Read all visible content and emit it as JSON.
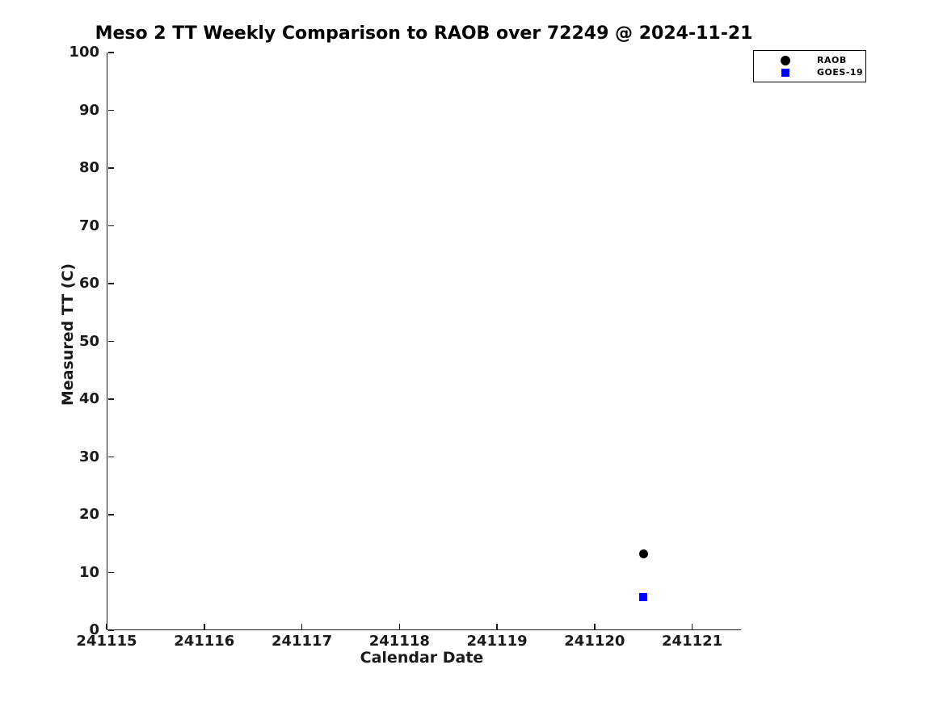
{
  "chart_data": {
    "type": "scatter",
    "title": "Meso 2 TT Weekly Comparison to RAOB over 72249 @ 2024-11-21",
    "xlabel": "Calendar Date",
    "ylabel": "Measured TT (C)",
    "xlim": [
      241115,
      241121.5
    ],
    "ylim": [
      0,
      100
    ],
    "xticks": [
      241115,
      241116,
      241117,
      241118,
      241119,
      241120,
      241121
    ],
    "yticks": [
      0,
      10,
      20,
      30,
      40,
      50,
      60,
      70,
      80,
      90,
      100
    ],
    "grid": false,
    "legend_position": "top-right",
    "axis_color": "#1a1a1a",
    "background_color": "#ffffff",
    "series": [
      {
        "name": "RAOB",
        "marker": "circle",
        "color": "#000000",
        "points": [
          {
            "x": 241120.5,
            "y": 13.2
          }
        ]
      },
      {
        "name": "GOES-19",
        "marker": "square",
        "color": "#0000ff",
        "points": [
          {
            "x": 241120.5,
            "y": 5.7
          }
        ]
      }
    ]
  }
}
